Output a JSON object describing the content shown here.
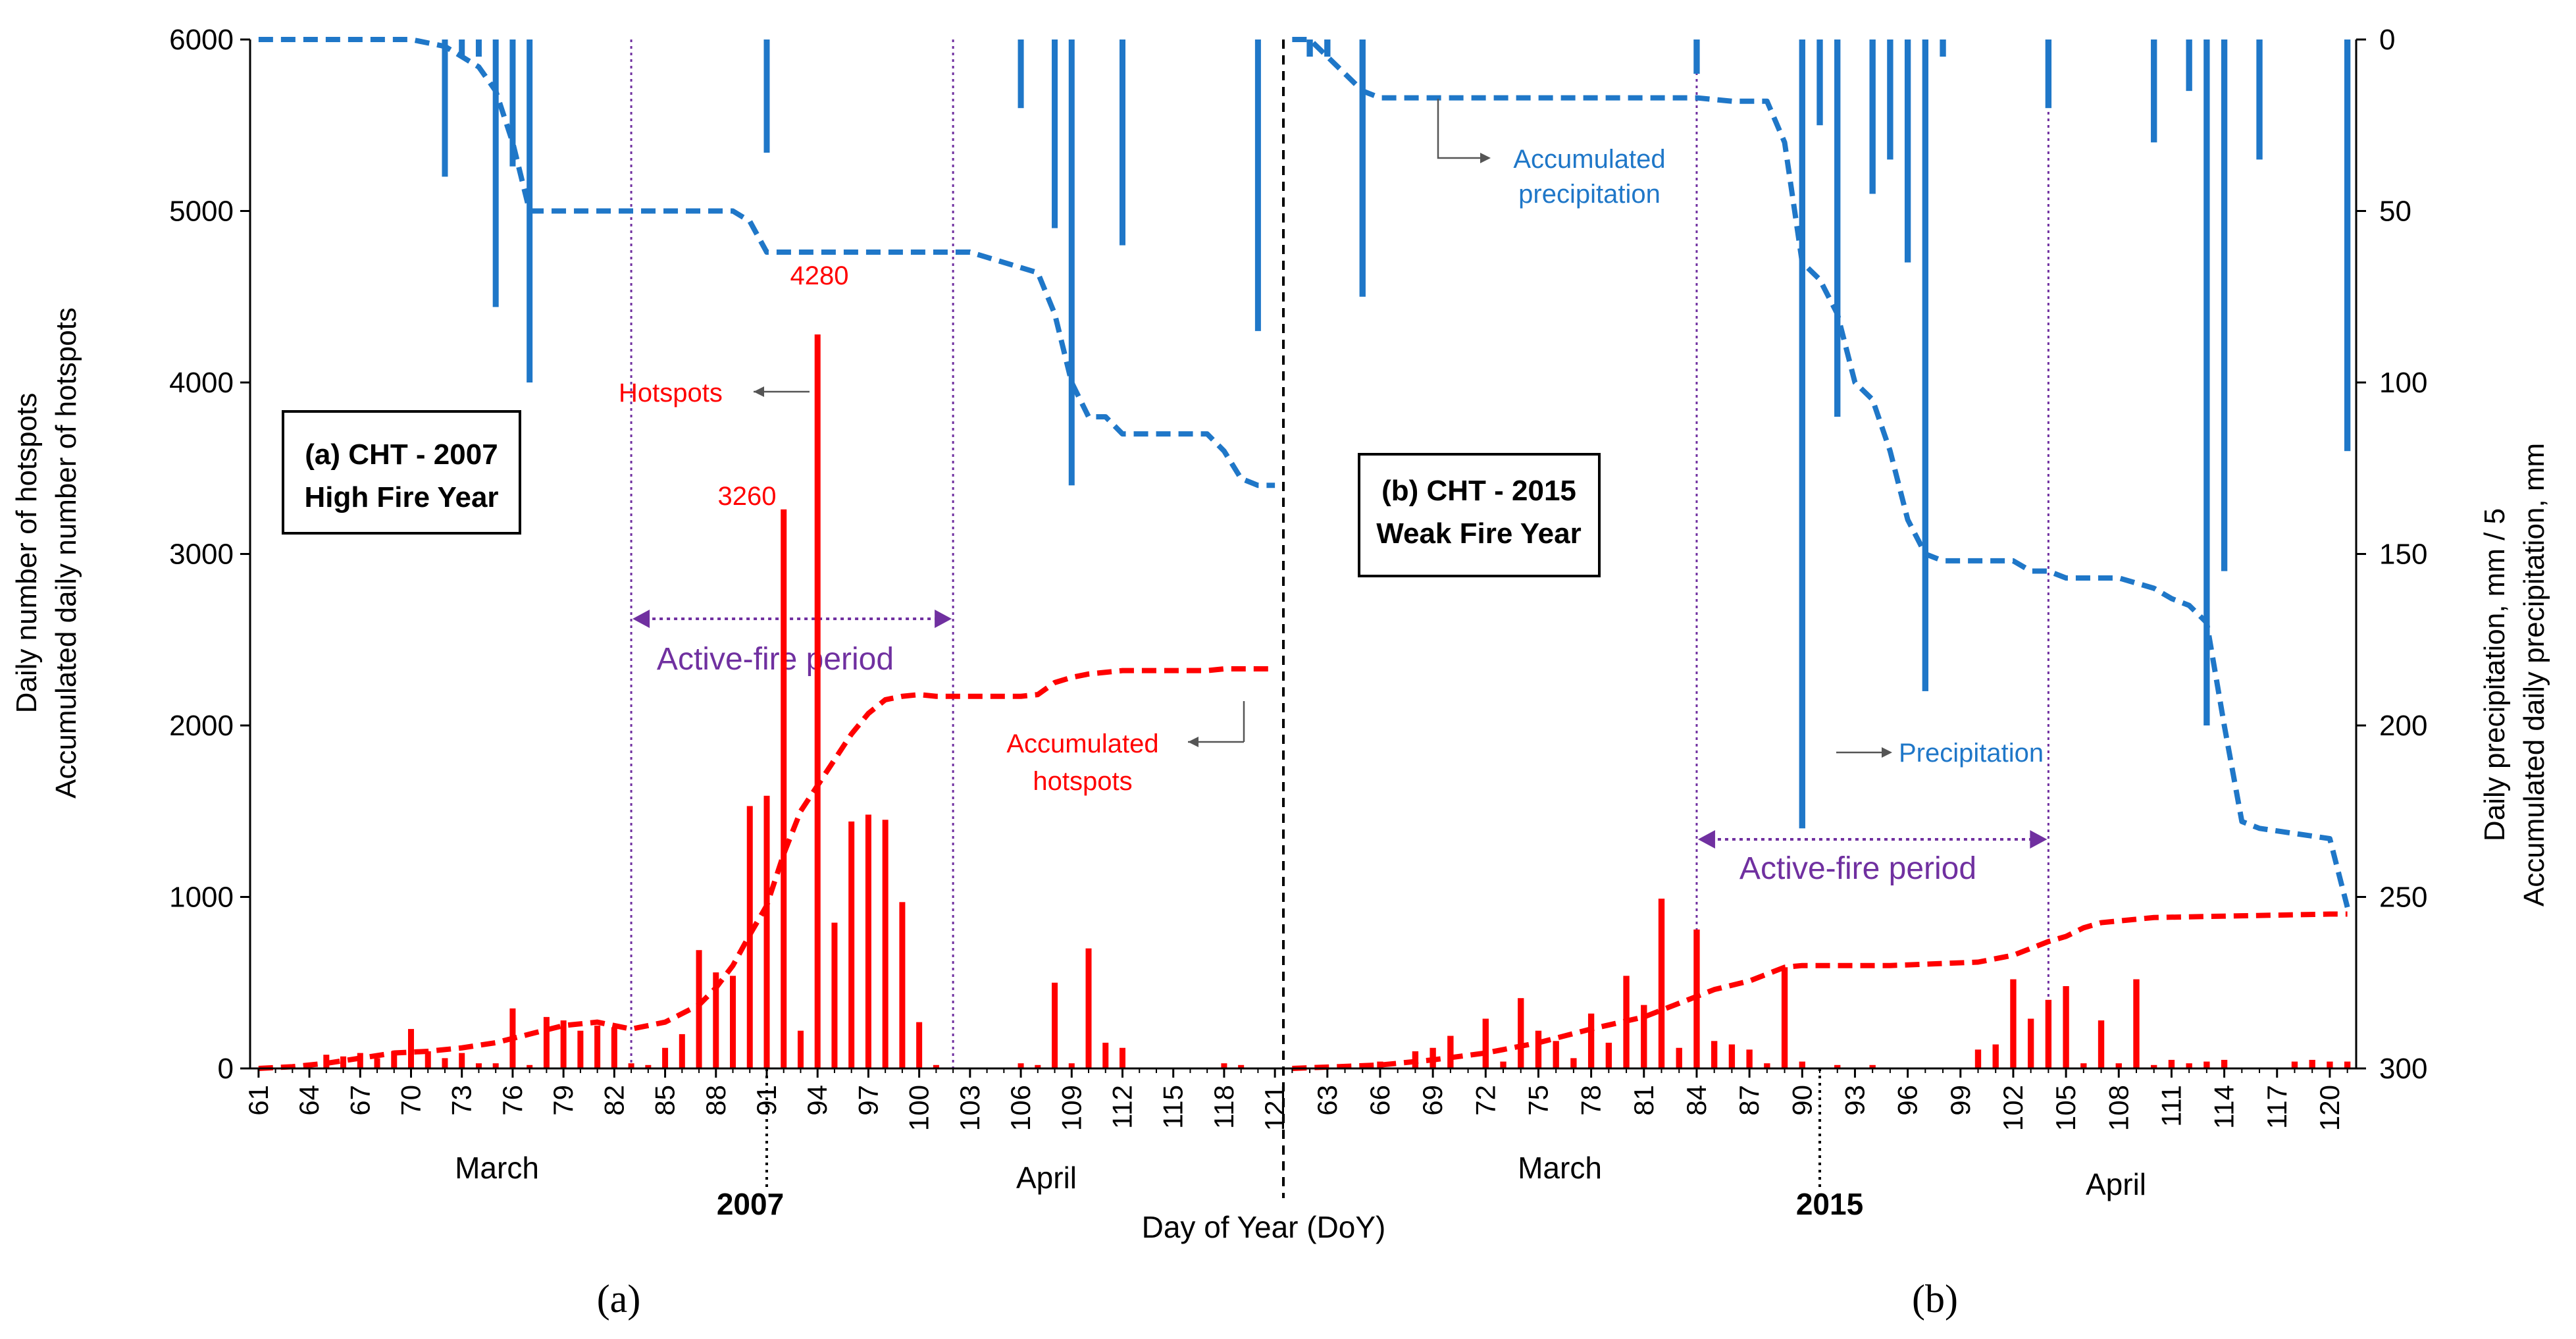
{
  "figure": {
    "xlabel": "Day of Year (DoY)",
    "ylabel_left_1": "Daily number of hotspots",
    "ylabel_left_2": "Accumulated daily number of hotspots",
    "ylabel_right_1": "Daily precipitation, mm / 5",
    "ylabel_right_2": "Accumulated daily precipitation, mm",
    "y_left_ticks": [
      "0",
      "1000",
      "2000",
      "3000",
      "4000",
      "5000",
      "6000"
    ],
    "y_right_ticks": [
      "0",
      "50",
      "100",
      "150",
      "200",
      "250",
      "300"
    ],
    "colors": {
      "hotspots": "#ff0000",
      "precipitation": "#1f77c8",
      "active_fire": "#7030a0",
      "divider": "#000000"
    }
  },
  "panels": [
    {
      "id": "a",
      "sub_label": "(a)",
      "box_line1": "(a) CHT - 2007",
      "box_line2": "High Fire Year",
      "year_label": "2007",
      "month_labels": [
        "March",
        "April"
      ],
      "x_ticks": [
        "61",
        "64",
        "67",
        "70",
        "73",
        "76",
        "79",
        "82",
        "85",
        "88",
        "91",
        "94",
        "97",
        "100",
        "103",
        "106",
        "109",
        "112",
        "115",
        "118",
        "121"
      ],
      "active_fire_label": "Active-fire period",
      "annotations": {
        "hotspots": "Hotspots",
        "accum_hotspots_line1": "Accumulated",
        "accum_hotspots_line2": "hotspots",
        "peak1": "3260",
        "peak2": "4280"
      }
    },
    {
      "id": "b",
      "sub_label": "(b)",
      "box_line1": "(b) CHT - 2015",
      "box_line2": "Weak Fire Year",
      "year_label": "2015",
      "month_labels": [
        "March",
        "April"
      ],
      "x_ticks": [
        "63",
        "66",
        "69",
        "72",
        "75",
        "78",
        "81",
        "84",
        "87",
        "90",
        "93",
        "96",
        "99",
        "102",
        "105",
        "108",
        "111",
        "114",
        "117",
        "120"
      ],
      "active_fire_label": "Active-fire period",
      "annotations": {
        "accum_precip_line1": "Accumulated",
        "accum_precip_line2": "precipitation",
        "precipitation": "Precipitation"
      }
    }
  ],
  "chart_data": [
    {
      "type": "bar",
      "title": "(a) CHT - 2007 High Fire Year",
      "xlabel": "Day of Year (DoY)",
      "ylabel": "Daily number of hotspots",
      "y2label": "Daily precipitation, mm / 5",
      "xlim": [
        61,
        121
      ],
      "ylim": [
        0,
        6000
      ],
      "y2lim": [
        300,
        0
      ],
      "active_fire_period": [
        83,
        102
      ],
      "series": [
        {
          "name": "Hotspots",
          "kind": "bar",
          "x": [
            65,
            66,
            67,
            68,
            69,
            70,
            71,
            72,
            73,
            74,
            75,
            76,
            77,
            78,
            79,
            80,
            81,
            82,
            83,
            84,
            85,
            86,
            87,
            88,
            89,
            90,
            91,
            92,
            93,
            94,
            95,
            96,
            97,
            98,
            99,
            100,
            101,
            106,
            107,
            108,
            109,
            110,
            111,
            112,
            118,
            119
          ],
          "values": [
            80,
            70,
            90,
            60,
            100,
            230,
            100,
            60,
            90,
            30,
            30,
            350,
            20,
            300,
            280,
            220,
            250,
            240,
            30,
            20,
            120,
            200,
            690,
            560,
            540,
            1530,
            1590,
            3260,
            220,
            4280,
            850,
            1440,
            1480,
            1450,
            970,
            270,
            20,
            30,
            20,
            500,
            30,
            700,
            150,
            120,
            30,
            20
          ]
        },
        {
          "name": "Accumulated hotspots",
          "kind": "line",
          "x": [
            61,
            63,
            65,
            67,
            69,
            71,
            73,
            75,
            77,
            79,
            81,
            83,
            85,
            87,
            88,
            89,
            90,
            91,
            92,
            93,
            94,
            95,
            96,
            97,
            98,
            99,
            100,
            101,
            102,
            103,
            104,
            105,
            106,
            107,
            108,
            109,
            110,
            111,
            112,
            113,
            114,
            115,
            116,
            117,
            118,
            119,
            120,
            121
          ],
          "values": [
            0,
            10,
            30,
            60,
            90,
            100,
            120,
            150,
            200,
            250,
            270,
            230,
            270,
            370,
            470,
            600,
            780,
            950,
            1250,
            1500,
            1650,
            1800,
            1950,
            2070,
            2150,
            2170,
            2180,
            2170,
            2170,
            2170,
            2170,
            2170,
            2170,
            2180,
            2250,
            2280,
            2300,
            2310,
            2320,
            2320,
            2320,
            2320,
            2320,
            2320,
            2330,
            2330,
            2330,
            2330
          ]
        },
        {
          "name": "Precipitation",
          "kind": "bar_down",
          "axis": "right",
          "x": [
            72,
            73,
            74,
            75,
            76,
            77,
            91,
            106,
            108,
            109,
            112,
            120
          ],
          "values": [
            40,
            5,
            5,
            78,
            37,
            100,
            33,
            20,
            55,
            130,
            60,
            85
          ]
        },
        {
          "name": "Accumulated precipitation",
          "kind": "line",
          "axis": "right",
          "x": [
            61,
            70,
            72,
            73,
            74,
            75,
            76,
            77,
            80,
            85,
            89,
            90,
            91,
            95,
            100,
            103,
            105,
            107,
            108,
            109,
            110,
            111,
            112,
            113,
            115,
            117,
            118,
            119,
            120,
            121
          ],
          "values": [
            0,
            0,
            2,
            5,
            8,
            15,
            30,
            50,
            50,
            50,
            50,
            53,
            62,
            62,
            62,
            62,
            65,
            68,
            80,
            100,
            110,
            110,
            115,
            115,
            115,
            115,
            120,
            128,
            130,
            130
          ]
        }
      ]
    },
    {
      "type": "bar",
      "title": "(b) CHT - 2015 Weak Fire Year",
      "xlabel": "Day of Year (DoY)",
      "ylabel": "Accumulated daily number of hotspots",
      "y2label": "Accumulated daily precipitation, mm",
      "xlim": [
        61,
        121
      ],
      "ylim": [
        0,
        6000
      ],
      "y2lim": [
        300,
        0
      ],
      "active_fire_period": [
        84,
        104
      ],
      "series": [
        {
          "name": "Hotspots",
          "kind": "bar",
          "x": [
            66,
            68,
            69,
            70,
            72,
            73,
            74,
            75,
            76,
            77,
            78,
            79,
            80,
            81,
            82,
            83,
            84,
            85,
            86,
            87,
            88,
            89,
            90,
            92,
            94,
            100,
            101,
            102,
            103,
            104,
            105,
            106,
            107,
            108,
            109,
            110,
            111,
            112,
            113,
            114,
            118,
            119,
            120,
            121
          ],
          "values": [
            40,
            100,
            120,
            190,
            290,
            40,
            410,
            220,
            160,
            60,
            320,
            150,
            540,
            370,
            990,
            120,
            810,
            160,
            140,
            110,
            30,
            590,
            40,
            20,
            20,
            110,
            140,
            520,
            290,
            400,
            480,
            30,
            280,
            30,
            520,
            20,
            50,
            30,
            40,
            50,
            40,
            50,
            40,
            40
          ]
        },
        {
          "name": "Accumulated hotspots",
          "kind": "line",
          "x": [
            61,
            66,
            69,
            72,
            75,
            78,
            81,
            83,
            85,
            87,
            89,
            90,
            95,
            100,
            102,
            103,
            104,
            105,
            106,
            107,
            108,
            109,
            110,
            115,
            120,
            121
          ],
          "values": [
            0,
            20,
            50,
            90,
            150,
            230,
            300,
            380,
            460,
            510,
            590,
            600,
            600,
            620,
            660,
            700,
            740,
            770,
            820,
            850,
            860,
            870,
            880,
            890,
            900,
            900
          ]
        },
        {
          "name": "Precipitation",
          "kind": "bar_down",
          "axis": "right",
          "x": [
            62,
            63,
            65,
            84,
            90,
            91,
            92,
            94,
            95,
            96,
            97,
            98,
            104,
            110,
            112,
            113,
            114,
            116,
            121
          ],
          "values": [
            5,
            5,
            75,
            10,
            230,
            25,
            110,
            45,
            35,
            65,
            190,
            5,
            20,
            30,
            15,
            200,
            155,
            35,
            120
          ]
        },
        {
          "name": "Accumulated precipitation",
          "kind": "line",
          "axis": "right",
          "x": [
            61,
            62,
            63,
            64,
            65,
            66,
            70,
            75,
            80,
            83,
            84,
            86,
            88,
            89,
            90,
            91,
            92,
            93,
            94,
            95,
            96,
            97,
            98,
            100,
            102,
            103,
            104,
            105,
            106,
            108,
            110,
            111,
            112,
            113,
            114,
            115,
            116,
            120,
            121
          ],
          "values": [
            0,
            0,
            5,
            10,
            15,
            17,
            17,
            17,
            17,
            17,
            17,
            18,
            18,
            30,
            65,
            70,
            80,
            100,
            105,
            120,
            140,
            150,
            152,
            152,
            152,
            155,
            155,
            157,
            157,
            157,
            160,
            163,
            165,
            170,
            200,
            228,
            230,
            233,
            253
          ]
        }
      ]
    }
  ]
}
